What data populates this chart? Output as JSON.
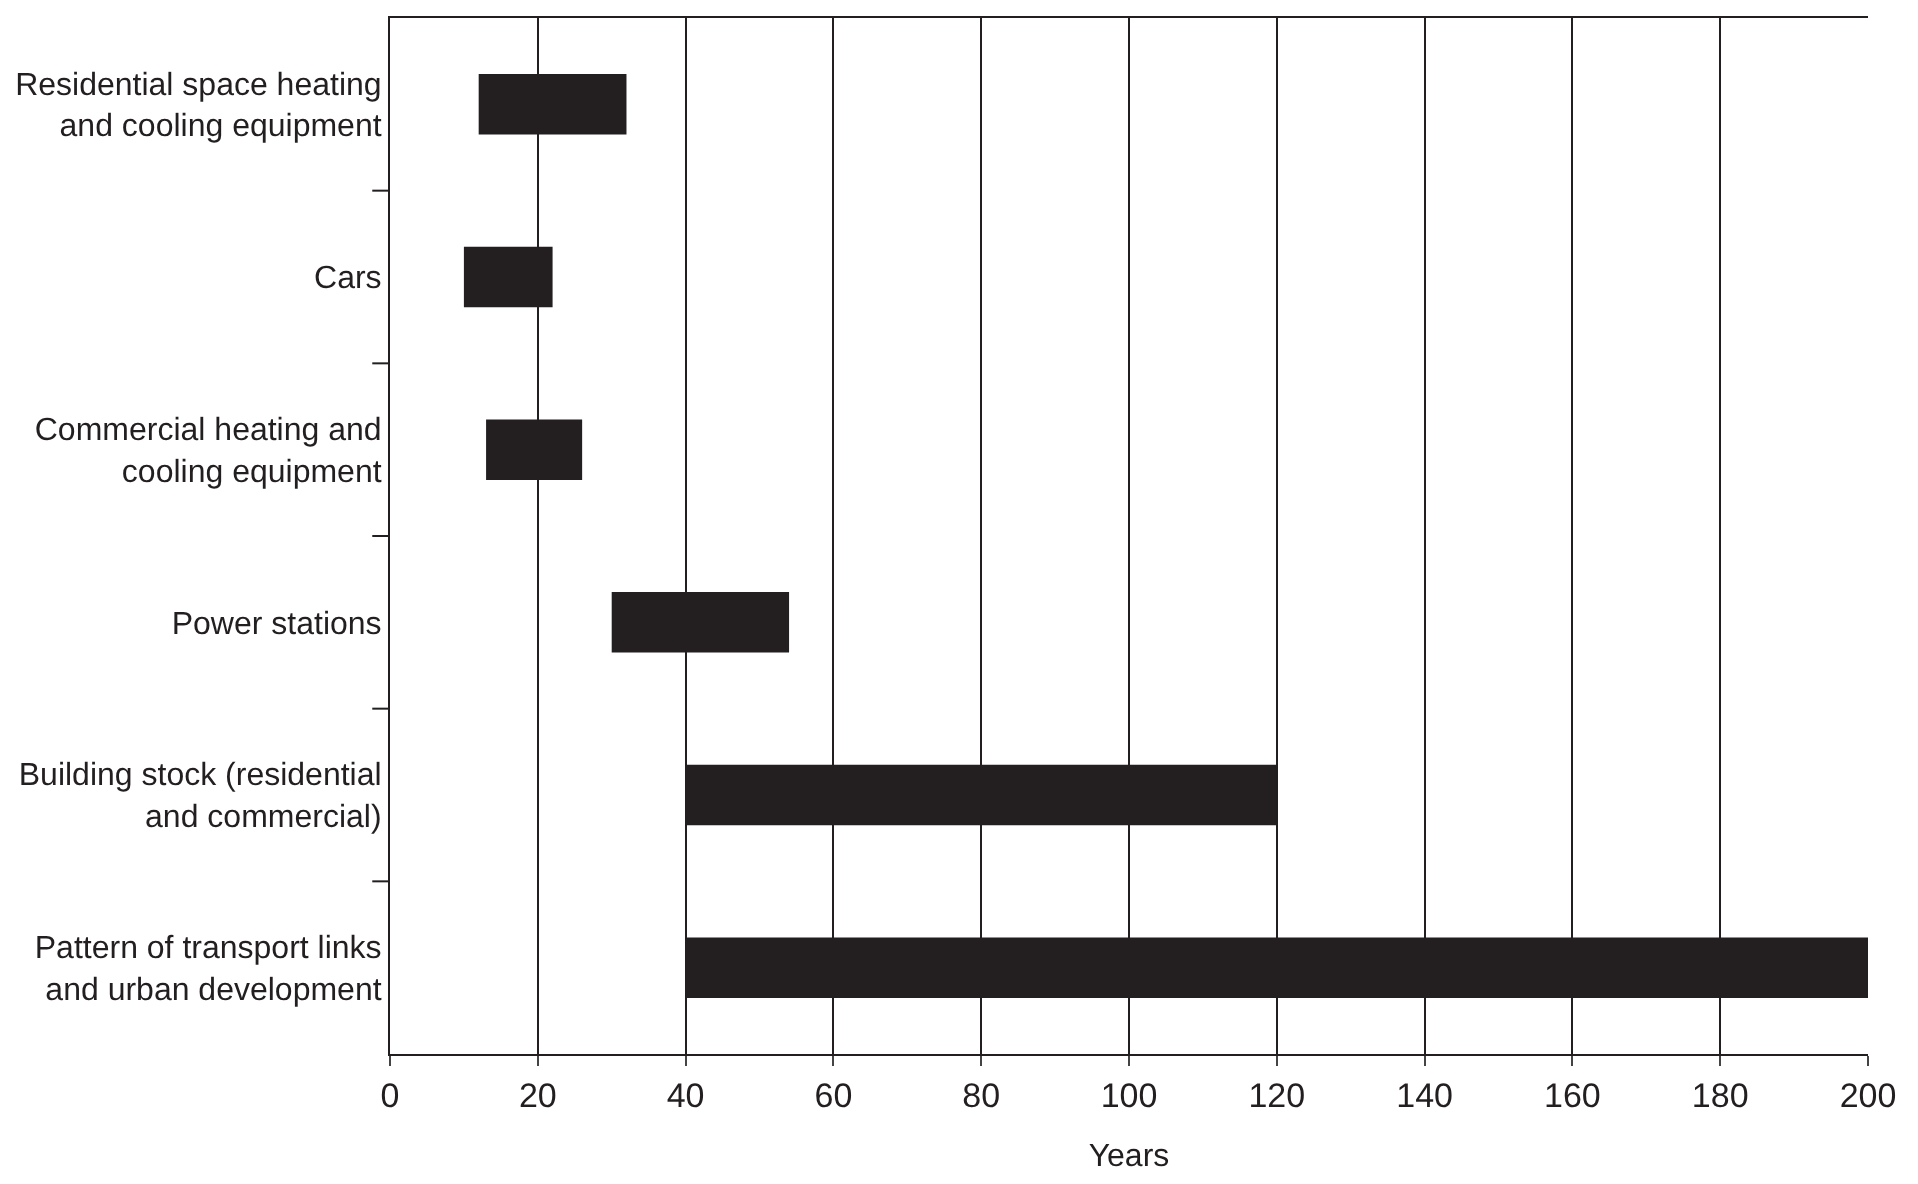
{
  "chart_data": {
    "type": "bar",
    "orientation": "horizontal",
    "xlabel": "Years",
    "categories": [
      "Residential space heating\nand cooling equipment",
      "Cars",
      "Commercial heating and\ncooling equipment",
      "Power stations",
      "Building stock (residential\nand commercial)",
      "Pattern of transport links\nand urban development"
    ],
    "base": [
      12,
      10,
      13,
      30,
      40,
      40
    ],
    "values": [
      20,
      12,
      13,
      24,
      80,
      160
    ],
    "color": "#231f20",
    "xlim": [
      0,
      200
    ],
    "xticks": [
      0,
      20,
      40,
      60,
      80,
      100,
      120,
      140,
      160,
      180,
      200
    ],
    "grid": "x"
  }
}
